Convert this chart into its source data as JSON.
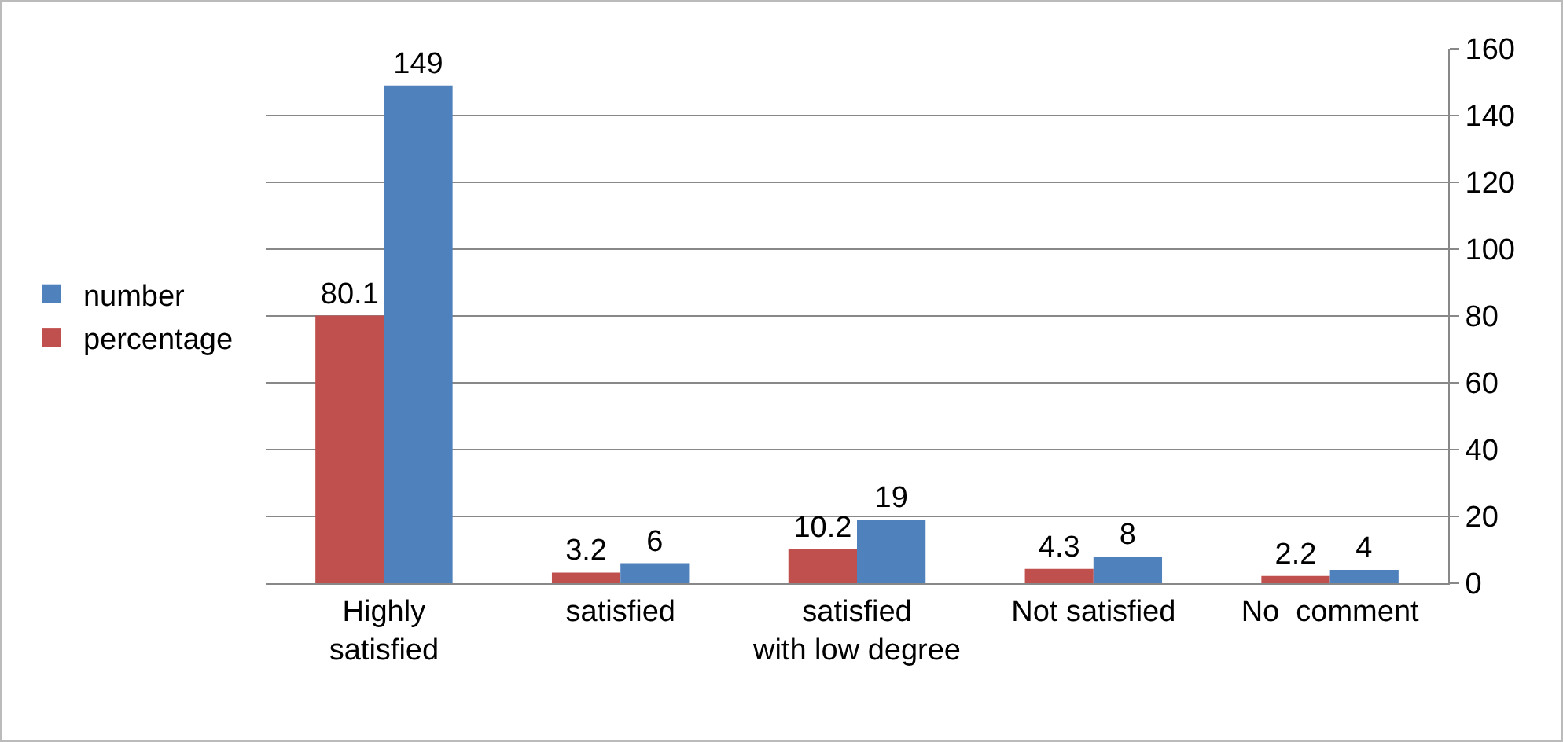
{
  "chart_data": {
    "type": "bar",
    "categories": [
      "Highly satisfied",
      "satisfied",
      "satisfied with low degree",
      "Not satisfied",
      "No  comment"
    ],
    "series": [
      {
        "name": "percentage",
        "color": "#c0504d",
        "values": [
          80.1,
          3.2,
          10.2,
          4.3,
          2.2
        ]
      },
      {
        "name": "number",
        "color": "#4f81bd",
        "values": [
          149,
          6,
          19,
          8,
          4
        ]
      }
    ],
    "ylim": [
      0,
      160
    ],
    "yticks": [
      0,
      20,
      40,
      60,
      80,
      100,
      120,
      140,
      160
    ],
    "grid": "y",
    "legend": "left",
    "data_labels": true
  }
}
